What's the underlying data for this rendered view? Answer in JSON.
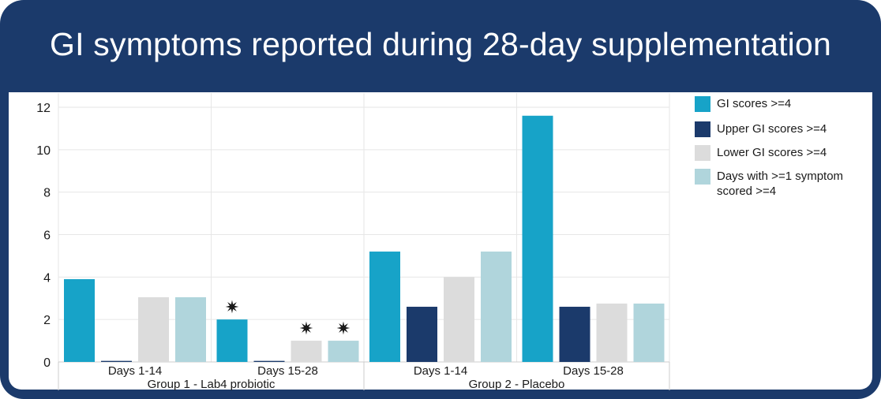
{
  "header": {
    "title": "GI symptoms reported during 28-day supplementation"
  },
  "colors": {
    "frame": "#1b3a6b",
    "gi": "#17a3c8",
    "upper": "#1b3a6b",
    "lower": "#dcdcdc",
    "days": "#b0d5dc",
    "grid": "#e6e6e6",
    "star": "#1a1a1a"
  },
  "chart_data": {
    "type": "bar",
    "title": "GI symptoms reported during 28-day supplementation",
    "xlabel": "",
    "ylabel": "",
    "ylim": [
      0,
      12
    ],
    "yticks": [
      0,
      2,
      4,
      6,
      8,
      10,
      12
    ],
    "grid": true,
    "legend_position": "right",
    "groups": [
      {
        "label": "Group 1 - Lab4 probiotic",
        "categories": [
          "Days 1-14",
          "Days 15-28"
        ]
      },
      {
        "label": "Group 2 - Placebo",
        "categories": [
          "Days 1-14",
          "Days 15-28"
        ]
      }
    ],
    "categories": [
      "Days 1-14",
      "Days 15-28",
      "Days 1-14",
      "Days 15-28"
    ],
    "series": [
      {
        "name": "GI scores >=4",
        "color": "#17a3c8",
        "values": [
          3.9,
          2.0,
          5.2,
          11.6
        ]
      },
      {
        "name": "Upper GI scores >=4",
        "color": "#1b3a6b",
        "values": [
          0.05,
          0.05,
          2.6,
          2.6
        ]
      },
      {
        "name": "Lower GI scores >=4",
        "color": "#dcdcdc",
        "values": [
          3.05,
          1.0,
          4.0,
          2.75
        ]
      },
      {
        "name": "Days with >=1 symptom scored >=4",
        "color": "#b0d5dc",
        "values": [
          3.05,
          1.0,
          5.2,
          2.75
        ]
      }
    ],
    "annotations": [
      {
        "text": "✷",
        "category_index": 1,
        "series_index": 0
      },
      {
        "text": "✷",
        "category_index": 1,
        "series_index": 2
      },
      {
        "text": "✷",
        "category_index": 1,
        "series_index": 3
      }
    ]
  }
}
